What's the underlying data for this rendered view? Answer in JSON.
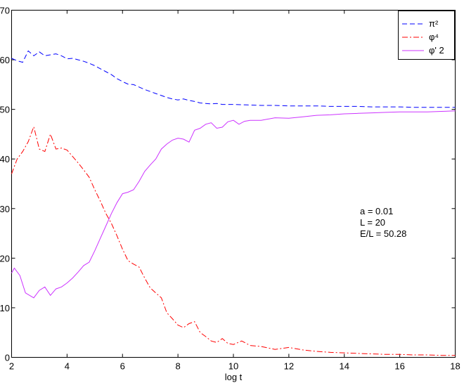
{
  "chart_data": {
    "type": "line",
    "xlabel": "log  t",
    "ylabel": "",
    "xlim": [
      2,
      18
    ],
    "ylim": [
      0,
      70
    ],
    "x_ticks": [
      2,
      4,
      6,
      8,
      10,
      12,
      14,
      16,
      18
    ],
    "y_ticks": [
      0,
      10,
      20,
      30,
      40,
      50,
      60,
      70
    ],
    "legend_position": "top-right",
    "grid": false,
    "series": [
      {
        "name": "π²",
        "color": "#0000ff",
        "dash": "dashed",
        "x": [
          2.0,
          2.2,
          2.4,
          2.6,
          2.8,
          3.0,
          3.2,
          3.4,
          3.6,
          3.8,
          4.0,
          4.2,
          4.4,
          4.6,
          4.8,
          5.0,
          5.2,
          5.4,
          5.6,
          5.8,
          6.0,
          6.2,
          6.4,
          6.6,
          6.8,
          7.0,
          7.2,
          7.4,
          7.6,
          7.8,
          8.0,
          8.2,
          8.4,
          8.6,
          8.8,
          9.0,
          9.2,
          9.4,
          9.6,
          9.8,
          10.0,
          10.5,
          11.0,
          11.5,
          12.0,
          12.5,
          13.0,
          13.5,
          14.0,
          14.5,
          15.0,
          15.5,
          16.0,
          16.5,
          17.0,
          17.5,
          18.0
        ],
        "y": [
          60.3,
          59.8,
          59.5,
          61.8,
          60.8,
          61.6,
          60.8,
          61.0,
          61.2,
          60.8,
          60.2,
          60.3,
          60.0,
          59.7,
          59.3,
          58.8,
          58.2,
          57.6,
          57.0,
          56.2,
          55.6,
          55.1,
          55.0,
          54.5,
          54.0,
          53.6,
          53.2,
          52.8,
          52.4,
          52.1,
          51.9,
          52.1,
          51.8,
          51.6,
          51.3,
          51.2,
          51.1,
          51.2,
          51.0,
          51.0,
          51.0,
          50.9,
          50.8,
          50.8,
          50.7,
          50.7,
          50.7,
          50.6,
          50.6,
          50.6,
          50.5,
          50.5,
          50.5,
          50.4,
          50.4,
          50.4,
          50.4
        ]
      },
      {
        "name": "φ⁴",
        "color": "#ff0000",
        "dash": "dashdot",
        "x": [
          2.0,
          2.2,
          2.4,
          2.6,
          2.8,
          3.0,
          3.2,
          3.4,
          3.6,
          3.8,
          4.0,
          4.2,
          4.4,
          4.6,
          4.8,
          5.0,
          5.2,
          5.4,
          5.6,
          5.8,
          6.0,
          6.2,
          6.4,
          6.6,
          6.8,
          7.0,
          7.2,
          7.4,
          7.6,
          7.8,
          8.0,
          8.2,
          8.4,
          8.6,
          8.8,
          9.0,
          9.2,
          9.4,
          9.6,
          9.8,
          10.0,
          10.3,
          10.6,
          11.0,
          11.5,
          12.0,
          12.5,
          13.0,
          13.5,
          14.0,
          14.5,
          15.0,
          15.5,
          16.0,
          16.5,
          17.0,
          17.5,
          18.0
        ],
        "y": [
          37.0,
          40.0,
          41.5,
          43.5,
          46.5,
          42.0,
          41.5,
          45.0,
          42.0,
          42.2,
          41.8,
          40.5,
          39.2,
          37.8,
          36.3,
          33.8,
          31.5,
          29.0,
          27.0,
          24.5,
          21.8,
          19.5,
          18.8,
          18.2,
          16.0,
          14.0,
          13.0,
          12.0,
          9.0,
          7.8,
          6.5,
          6.0,
          6.8,
          7.2,
          5.0,
          4.2,
          3.3,
          3.0,
          3.8,
          2.8,
          2.6,
          3.3,
          2.4,
          2.2,
          1.6,
          2.0,
          1.5,
          1.2,
          1.0,
          0.9,
          0.8,
          0.7,
          0.6,
          0.6,
          0.5,
          0.5,
          0.4,
          0.4
        ]
      },
      {
        "name": "φ' 2",
        "color": "#cc33ff",
        "dash": "solid",
        "x": [
          2.0,
          2.1,
          2.3,
          2.5,
          2.8,
          3.0,
          3.2,
          3.4,
          3.6,
          3.8,
          4.0,
          4.2,
          4.4,
          4.6,
          4.8,
          5.0,
          5.2,
          5.4,
          5.6,
          5.8,
          6.0,
          6.2,
          6.4,
          6.6,
          6.8,
          7.0,
          7.2,
          7.4,
          7.6,
          7.8,
          8.0,
          8.2,
          8.4,
          8.6,
          8.8,
          9.0,
          9.2,
          9.4,
          9.6,
          9.8,
          10.0,
          10.2,
          10.4,
          10.6,
          11.0,
          11.5,
          12.0,
          12.5,
          13.0,
          13.5,
          14.0,
          14.5,
          15.0,
          15.5,
          16.0,
          16.5,
          17.0,
          17.5,
          18.0
        ],
        "y": [
          17.0,
          18.0,
          16.5,
          13.0,
          12.0,
          13.5,
          14.2,
          12.5,
          13.8,
          14.2,
          15.0,
          16.0,
          17.2,
          18.5,
          19.2,
          21.5,
          24.0,
          26.5,
          29.0,
          31.2,
          33.0,
          33.3,
          33.8,
          35.5,
          37.5,
          38.8,
          40.0,
          42.0,
          43.0,
          43.8,
          44.2,
          44.0,
          43.4,
          45.8,
          46.2,
          47.0,
          47.3,
          46.2,
          46.4,
          47.5,
          47.8,
          47.0,
          47.6,
          47.8,
          47.8,
          48.3,
          48.2,
          48.5,
          48.8,
          48.9,
          49.1,
          49.2,
          49.3,
          49.4,
          49.5,
          49.5,
          49.5,
          49.6,
          49.7
        ]
      }
    ],
    "annotations": [
      "a = 0.01",
      "L = 20",
      "E/L = 50.28"
    ]
  }
}
